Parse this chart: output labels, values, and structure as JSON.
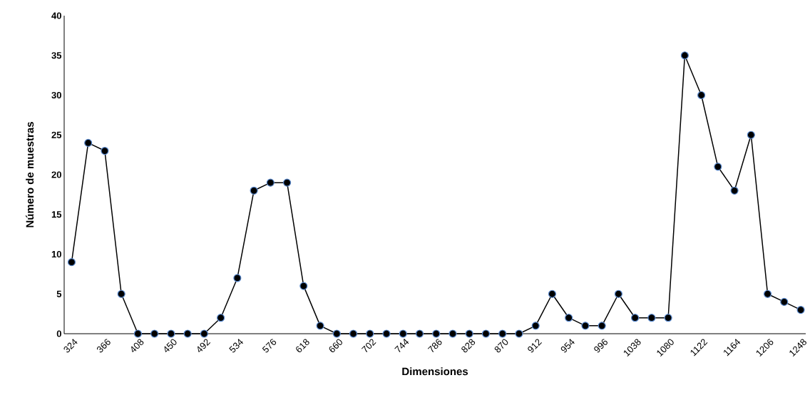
{
  "chart_data": {
    "type": "line",
    "xlabel": "Dimensiones",
    "ylabel": "Número de muestras",
    "categories": [
      "324",
      null,
      "366",
      null,
      "408",
      null,
      "450",
      null,
      "492",
      null,
      "534",
      null,
      "576",
      null,
      "618",
      null,
      "660",
      null,
      "702",
      null,
      "744",
      null,
      "786",
      null,
      "828",
      null,
      "870",
      null,
      "912",
      null,
      "954",
      null,
      "996",
      null,
      "1038",
      null,
      "1080",
      null,
      "1122",
      null,
      "1164",
      null,
      "1206",
      null,
      "1248"
    ],
    "series": [
      {
        "color": "#000000",
        "values": [
          9,
          24,
          23,
          5,
          0,
          0,
          0,
          0,
          0,
          2,
          7,
          18,
          19,
          19,
          6,
          1,
          0,
          0,
          0,
          0,
          0,
          0,
          0,
          0,
          0,
          0,
          0,
          0,
          1,
          5,
          2,
          1,
          1,
          5,
          2,
          2,
          2,
          35,
          30,
          21,
          18,
          25,
          5,
          4,
          3
        ]
      }
    ],
    "ylim": [
      0,
      40
    ],
    "yticks": [
      0,
      5,
      10,
      15,
      20,
      25,
      30,
      35,
      40
    ],
    "grid": false,
    "marker": "circle",
    "line_style": "solid"
  }
}
